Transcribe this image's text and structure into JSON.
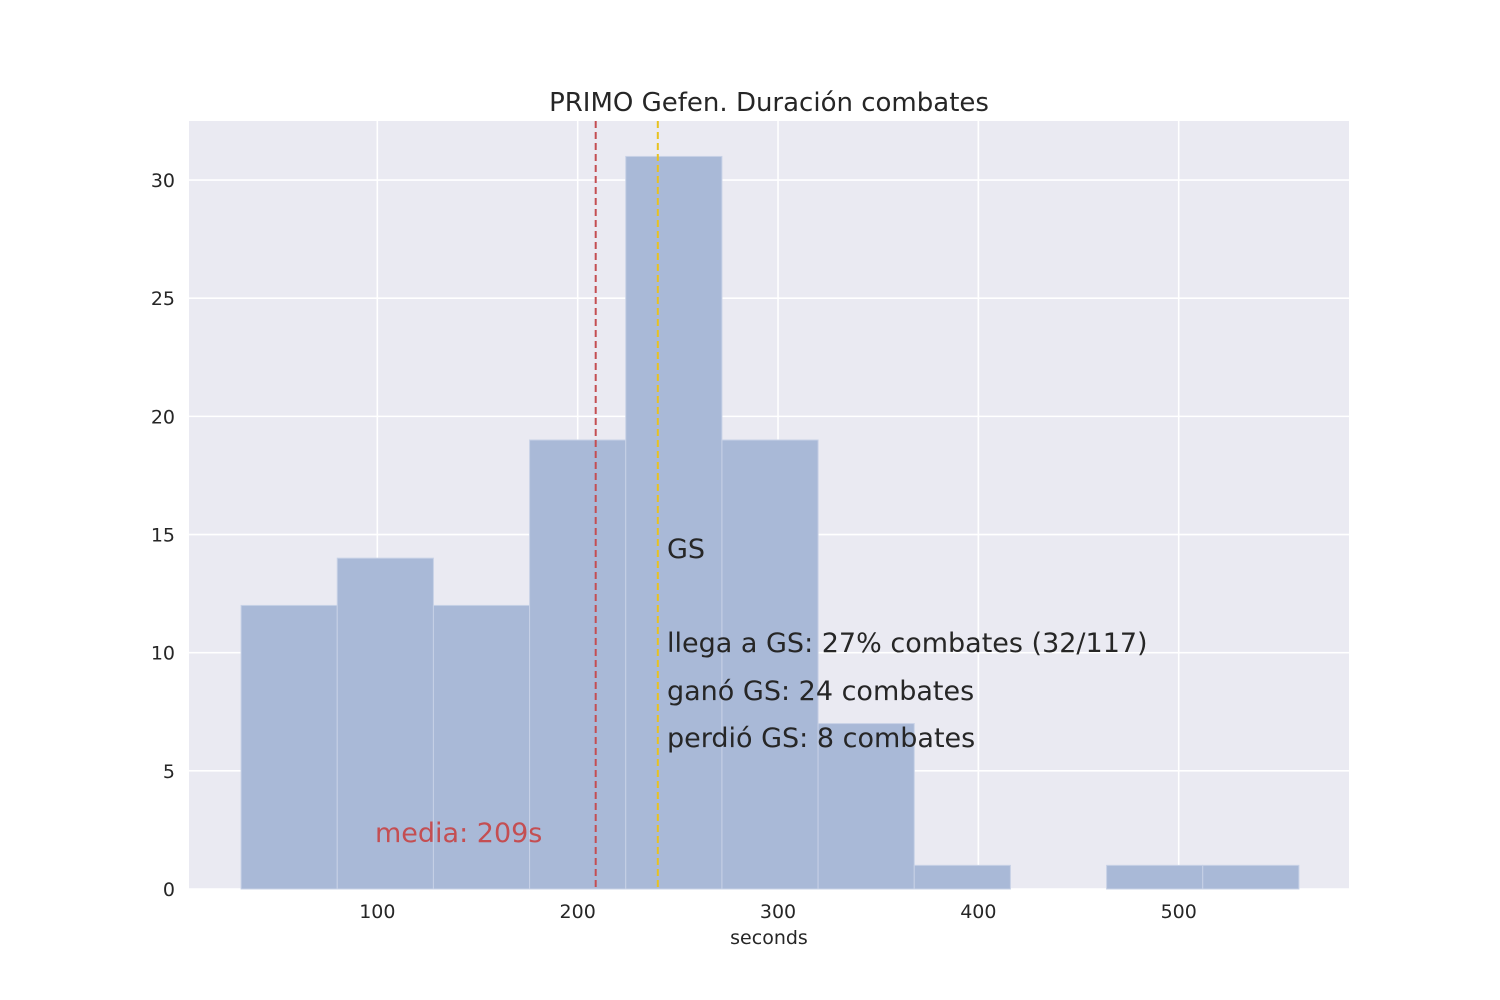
{
  "chart_data": {
    "type": "histogram",
    "title": "PRIMO Gefen. Duración combates",
    "xlabel": "seconds",
    "ylabel": "",
    "xlim": [
      6,
      585
    ],
    "ylim": [
      0,
      32.5
    ],
    "xticks": [
      100,
      200,
      300,
      400,
      500
    ],
    "yticks": [
      0,
      5,
      10,
      15,
      20,
      25,
      30
    ],
    "grid": true,
    "bins": [
      {
        "x0": 32,
        "x1": 80,
        "count": 12
      },
      {
        "x0": 80,
        "x1": 128,
        "count": 14
      },
      {
        "x0": 128,
        "x1": 176,
        "count": 12
      },
      {
        "x0": 176,
        "x1": 224,
        "count": 19
      },
      {
        "x0": 224,
        "x1": 272,
        "count": 31
      },
      {
        "x0": 272,
        "x1": 320,
        "count": 19
      },
      {
        "x0": 320,
        "x1": 368,
        "count": 7
      },
      {
        "x0": 368,
        "x1": 416,
        "count": 1
      },
      {
        "x0": 416,
        "x1": 464,
        "count": 0
      },
      {
        "x0": 464,
        "x1": 512,
        "count": 1
      },
      {
        "x0": 512,
        "x1": 560,
        "count": 1
      }
    ],
    "vlines": [
      {
        "x": 209,
        "color": "#c44e52",
        "style": "dashed"
      },
      {
        "x": 240,
        "color": "#ccb974",
        "style": "dashed"
      }
    ],
    "annotations": {
      "gs_label": "GS",
      "gs_reach": "llega a GS: 27% combates (32/117)",
      "gs_won": "ganó GS: 24 combates",
      "gs_lost": "perdió GS: 8 combates",
      "mean_label": "media: 209s"
    },
    "colors": {
      "bar": "#a9b9d7",
      "bar_edge": "#c7d1e6",
      "background": "#eaeaf2",
      "grid": "#ffffff",
      "mean": "#c44e52",
      "gs": "#e8c21f",
      "text": "#262626"
    }
  }
}
